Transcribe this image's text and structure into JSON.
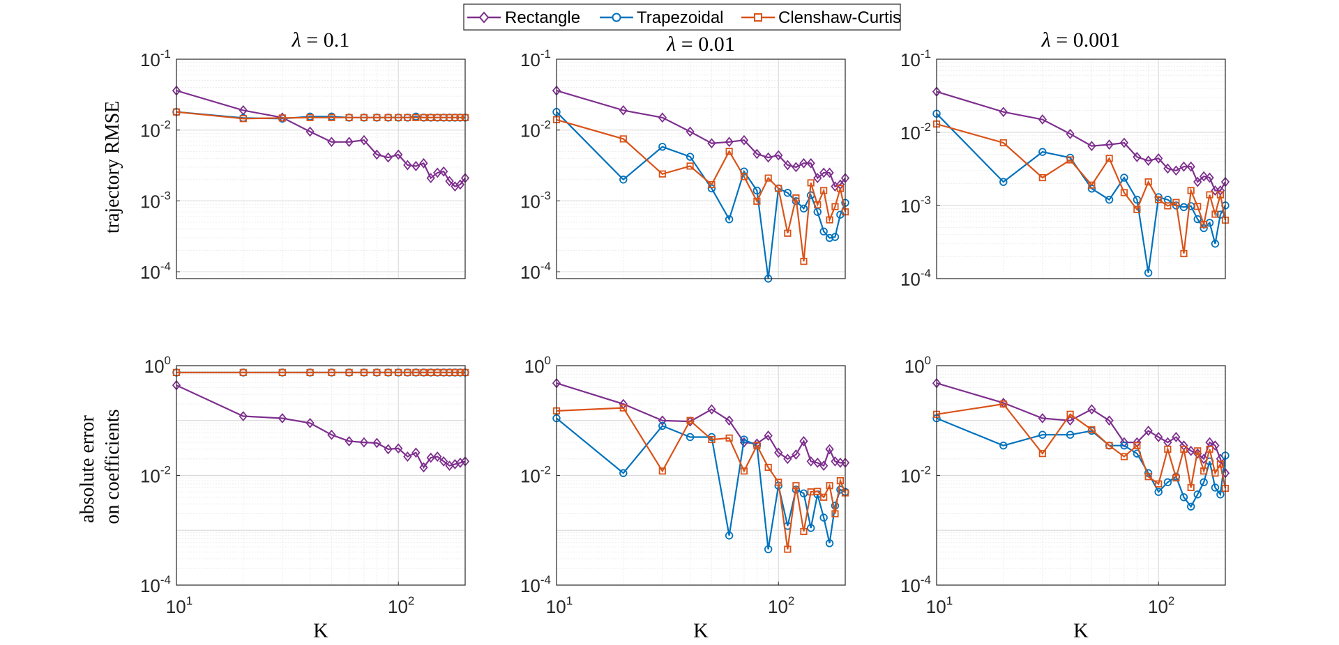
{
  "legend": {
    "entries": [
      {
        "name": "Rectangle",
        "color": "#7e2f8e",
        "marker": "diamond"
      },
      {
        "name": "Trapezoidal",
        "color": "#0072bd",
        "marker": "circle"
      },
      {
        "name": "Clenshaw-Curtis",
        "color": "#d95319",
        "marker": "square"
      }
    ]
  },
  "row_labels": {
    "top": [
      "trajectory RMSE"
    ],
    "bottom": [
      "absolute error",
      "on coefficients"
    ]
  },
  "column_titles": [
    {
      "symbol": "λ",
      "rest": " = 0.1"
    },
    {
      "symbol": "λ",
      "rest": " = 0.01"
    },
    {
      "symbol": "λ",
      "rest": " = 0.001"
    }
  ],
  "xlabel": "K",
  "chart_data": [
    {
      "type": "line",
      "row": 0,
      "col": 0,
      "title": "λ = 0.1",
      "xscale": "log",
      "yscale": "log",
      "xlim": [
        10,
        200
      ],
      "ylim": [
        8e-05,
        0.1
      ],
      "ylabel": "trajectory RMSE",
      "xlabel": "",
      "yticks": [
        {
          "base": "10",
          "exp": "-1",
          "v": 0.1
        },
        {
          "base": "10",
          "exp": "-2",
          "v": 0.01
        },
        {
          "base": "10",
          "exp": "-3",
          "v": 0.001
        },
        {
          "base": "10",
          "exp": "-4",
          "v": 0.0001
        }
      ],
      "xticks": [],
      "grid": true,
      "x": [
        10,
        20,
        30,
        40,
        50,
        60,
        70,
        80,
        90,
        100,
        110,
        120,
        130,
        140,
        150,
        160,
        170,
        180,
        190,
        200
      ],
      "series": [
        {
          "name": "Rectangle",
          "values": [
            0.036,
            0.019,
            0.015,
            0.0095,
            0.0068,
            0.0068,
            0.0072,
            0.0045,
            0.0041,
            0.0045,
            0.0032,
            0.0031,
            0.0034,
            0.0021,
            0.0025,
            0.0026,
            0.0019,
            0.0016,
            0.0017,
            0.0021
          ]
        },
        {
          "name": "Trapezoidal",
          "values": [
            0.018,
            0.0148,
            0.0145,
            0.0155,
            0.0155,
            0.015,
            0.015,
            0.015,
            0.015,
            0.015,
            0.015,
            0.0155,
            0.015,
            0.015,
            0.015,
            0.015,
            0.015,
            0.015,
            0.015,
            0.015
          ]
        },
        {
          "name": "Clenshaw-Curtis",
          "values": [
            0.018,
            0.0145,
            0.0148,
            0.015,
            0.015,
            0.015,
            0.015,
            0.015,
            0.015,
            0.015,
            0.015,
            0.015,
            0.015,
            0.015,
            0.015,
            0.015,
            0.015,
            0.015,
            0.015,
            0.015
          ]
        }
      ]
    },
    {
      "type": "line",
      "row": 0,
      "col": 1,
      "title": "λ = 0.01",
      "xscale": "log",
      "yscale": "log",
      "xlim": [
        10,
        200
      ],
      "ylim": [
        8e-05,
        0.1
      ],
      "ylabel": "",
      "xlabel": "",
      "yticks": [
        {
          "base": "10",
          "exp": "-1",
          "v": 0.1
        },
        {
          "base": "10",
          "exp": "-2",
          "v": 0.01
        },
        {
          "base": "10",
          "exp": "-3",
          "v": 0.001
        },
        {
          "base": "10",
          "exp": "-4",
          "v": 0.0001
        }
      ],
      "xticks": [],
      "grid": true,
      "x": [
        10,
        20,
        30,
        40,
        50,
        60,
        70,
        80,
        90,
        100,
        110,
        120,
        130,
        140,
        150,
        160,
        170,
        180,
        190,
        200
      ],
      "series": [
        {
          "name": "Rectangle",
          "values": [
            0.036,
            0.019,
            0.015,
            0.0095,
            0.0065,
            0.0068,
            0.0072,
            0.0046,
            0.0041,
            0.0044,
            0.0032,
            0.003,
            0.0034,
            0.0034,
            0.0021,
            0.0025,
            0.0025,
            0.0016,
            0.0017,
            0.0021
          ]
        },
        {
          "name": "Trapezoidal",
          "values": [
            0.018,
            0.002,
            0.0058,
            0.0042,
            0.0015,
            0.00055,
            0.0026,
            0.0014,
            8e-05,
            0.0015,
            0.0013,
            0.00099,
            0.00078,
            0.0012,
            0.0007,
            0.00037,
            0.0003,
            0.00031,
            0.00064,
            0.00094
          ]
        },
        {
          "name": "Clenshaw-Curtis",
          "values": [
            0.014,
            0.0075,
            0.0024,
            0.0031,
            0.0017,
            0.005,
            0.0022,
            0.00099,
            0.0021,
            0.0015,
            0.00035,
            0.0011,
            0.00014,
            0.0018,
            0.00088,
            0.0014,
            0.00054,
            0.00083,
            0.0015,
            0.0007
          ]
        }
      ]
    },
    {
      "type": "line",
      "row": 0,
      "col": 2,
      "title": "λ = 0.001",
      "xscale": "log",
      "yscale": "log",
      "xlim": [
        10,
        200
      ],
      "ylim": [
        0.0001,
        0.1
      ],
      "ylabel": "",
      "xlabel": "",
      "yticks": [
        {
          "base": "10",
          "exp": "-1",
          "v": 0.1
        },
        {
          "base": "10",
          "exp": "-2",
          "v": 0.01
        },
        {
          "base": "10",
          "exp": "-3",
          "v": 0.001
        },
        {
          "base": "10",
          "exp": "-4",
          "v": 0.0001
        }
      ],
      "xticks": [],
      "grid": true,
      "x": [
        10,
        20,
        30,
        40,
        50,
        60,
        70,
        80,
        90,
        100,
        110,
        120,
        130,
        140,
        150,
        160,
        170,
        180,
        190,
        200
      ],
      "series": [
        {
          "name": "Rectangle",
          "values": [
            0.036,
            0.019,
            0.015,
            0.0095,
            0.0065,
            0.0068,
            0.0072,
            0.0046,
            0.0041,
            0.0044,
            0.0032,
            0.003,
            0.0034,
            0.0034,
            0.0021,
            0.0025,
            0.0024,
            0.0016,
            0.0016,
            0.0021
          ]
        },
        {
          "name": "Trapezoidal",
          "values": [
            0.018,
            0.0021,
            0.0054,
            0.0045,
            0.0017,
            0.0012,
            0.0024,
            0.0012,
            0.00012,
            0.0013,
            0.0012,
            0.001,
            0.00095,
            0.00098,
            0.00065,
            0.00049,
            0.00058,
            0.0003,
            0.00075,
            0.001
          ]
        },
        {
          "name": "Clenshaw-Curtis",
          "values": [
            0.013,
            0.0072,
            0.0024,
            0.0042,
            0.0019,
            0.0044,
            0.0015,
            0.00088,
            0.0021,
            0.0012,
            0.00099,
            0.0011,
            0.00022,
            0.0016,
            0.00097,
            0.00055,
            0.0014,
            0.00076,
            0.0014,
            0.00063
          ]
        }
      ]
    },
    {
      "type": "line",
      "row": 1,
      "col": 0,
      "title": "",
      "xscale": "log",
      "yscale": "log",
      "xlim": [
        10,
        200
      ],
      "ylim": [
        0.0001,
        1
      ],
      "ylabel": "absolute error on coefficients",
      "xlabel": "K",
      "yticks": [
        {
          "base": "10",
          "exp": "0",
          "v": 1
        },
        {
          "base": "10",
          "exp": "-2",
          "v": 0.01
        },
        {
          "base": "10",
          "exp": "-4",
          "v": 0.0001
        }
      ],
      "xticks": [
        {
          "base": "10",
          "exp": "1",
          "v": 10
        },
        {
          "base": "10",
          "exp": "2",
          "v": 100
        }
      ],
      "grid": true,
      "x": [
        10,
        20,
        30,
        40,
        50,
        60,
        70,
        80,
        90,
        100,
        110,
        120,
        130,
        140,
        150,
        160,
        170,
        180,
        190,
        200
      ],
      "series": [
        {
          "name": "Rectangle",
          "values": [
            0.44,
            0.12,
            0.11,
            0.09,
            0.055,
            0.042,
            0.04,
            0.039,
            0.03,
            0.031,
            0.022,
            0.026,
            0.014,
            0.021,
            0.022,
            0.018,
            0.015,
            0.016,
            0.017,
            0.018
          ]
        },
        {
          "name": "Trapezoidal",
          "values": [
            0.75,
            0.75,
            0.75,
            0.75,
            0.75,
            0.75,
            0.75,
            0.75,
            0.75,
            0.75,
            0.75,
            0.75,
            0.75,
            0.75,
            0.75,
            0.75,
            0.75,
            0.75,
            0.75,
            0.75
          ]
        },
        {
          "name": "Clenshaw-Curtis",
          "values": [
            0.75,
            0.75,
            0.75,
            0.75,
            0.75,
            0.75,
            0.75,
            0.75,
            0.75,
            0.75,
            0.75,
            0.75,
            0.75,
            0.75,
            0.75,
            0.75,
            0.75,
            0.75,
            0.75,
            0.75
          ]
        }
      ]
    },
    {
      "type": "line",
      "row": 1,
      "col": 1,
      "title": "",
      "xscale": "log",
      "yscale": "log",
      "xlim": [
        10,
        200
      ],
      "ylim": [
        0.0001,
        1
      ],
      "ylabel": "",
      "xlabel": "K",
      "yticks": [
        {
          "base": "10",
          "exp": "0",
          "v": 1
        },
        {
          "base": "10",
          "exp": "-2",
          "v": 0.01
        },
        {
          "base": "10",
          "exp": "-4",
          "v": 0.0001
        }
      ],
      "xticks": [
        {
          "base": "10",
          "exp": "1",
          "v": 10
        },
        {
          "base": "10",
          "exp": "2",
          "v": 100
        }
      ],
      "grid": true,
      "x": [
        10,
        20,
        30,
        40,
        50,
        60,
        70,
        80,
        90,
        100,
        110,
        120,
        130,
        140,
        150,
        160,
        170,
        180,
        190,
        200
      ],
      "series": [
        {
          "name": "Rectangle",
          "values": [
            0.48,
            0.2,
            0.1,
            0.096,
            0.16,
            0.1,
            0.04,
            0.038,
            0.053,
            0.026,
            0.02,
            0.024,
            0.042,
            0.018,
            0.017,
            0.015,
            0.03,
            0.018,
            0.017,
            0.017
          ]
        },
        {
          "name": "Trapezoidal",
          "values": [
            0.11,
            0.011,
            0.08,
            0.05,
            0.05,
            0.0008,
            0.045,
            0.035,
            0.00045,
            0.0065,
            0.0012,
            0.0055,
            0.0047,
            0.0011,
            0.0045,
            0.0017,
            0.00058,
            0.0028,
            0.0055,
            0.005
          ]
        },
        {
          "name": "Clenshaw-Curtis",
          "values": [
            0.15,
            0.17,
            0.012,
            0.1,
            0.045,
            0.048,
            0.012,
            0.035,
            0.014,
            0.0075,
            0.00045,
            0.0065,
            0.00095,
            0.005,
            0.0051,
            0.004,
            0.0065,
            0.002,
            0.008,
            0.0048
          ]
        }
      ]
    },
    {
      "type": "line",
      "row": 1,
      "col": 2,
      "title": "",
      "xscale": "log",
      "yscale": "log",
      "xlim": [
        10,
        200
      ],
      "ylim": [
        0.0001,
        1
      ],
      "ylabel": "",
      "xlabel": "K",
      "yticks": [
        {
          "base": "10",
          "exp": "0",
          "v": 1
        },
        {
          "base": "10",
          "exp": "-2",
          "v": 0.01
        },
        {
          "base": "10",
          "exp": "-4",
          "v": 0.0001
        }
      ],
      "xticks": [
        {
          "base": "10",
          "exp": "1",
          "v": 10
        },
        {
          "base": "10",
          "exp": "2",
          "v": 100
        }
      ],
      "grid": true,
      "x": [
        10,
        20,
        30,
        40,
        50,
        60,
        70,
        80,
        90,
        100,
        110,
        120,
        130,
        140,
        150,
        160,
        170,
        180,
        190,
        200
      ],
      "series": [
        {
          "name": "Rectangle",
          "values": [
            0.48,
            0.21,
            0.11,
            0.1,
            0.16,
            0.1,
            0.04,
            0.04,
            0.065,
            0.05,
            0.04,
            0.05,
            0.035,
            0.028,
            0.025,
            0.02,
            0.04,
            0.035,
            0.02,
            0.011
          ]
        },
        {
          "name": "Trapezoidal",
          "values": [
            0.11,
            0.035,
            0.055,
            0.055,
            0.065,
            0.035,
            0.035,
            0.025,
            0.011,
            0.005,
            0.0075,
            0.0095,
            0.004,
            0.0027,
            0.0045,
            0.0075,
            0.018,
            0.006,
            0.0045,
            0.023
          ]
        },
        {
          "name": "Clenshaw-Curtis",
          "values": [
            0.13,
            0.2,
            0.025,
            0.13,
            0.068,
            0.035,
            0.022,
            0.035,
            0.0095,
            0.007,
            0.03,
            0.009,
            0.03,
            0.006,
            0.028,
            0.012,
            0.03,
            0.011,
            0.016,
            0.0058
          ]
        }
      ]
    }
  ]
}
